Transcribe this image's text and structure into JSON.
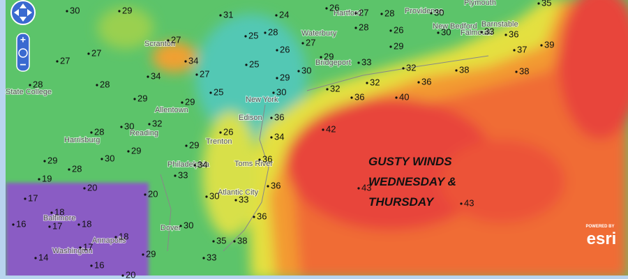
{
  "annotation": {
    "lines": [
      "GUSTY WINDS",
      "WEDNESDAY &",
      "THURSDAY"
    ]
  },
  "stations": [
    30,
    29,
    31,
    24,
    26,
    27,
    28,
    30,
    35,
    27,
    25,
    28,
    26,
    27,
    28,
    26,
    30,
    33,
    36,
    37,
    39,
    27,
    27,
    28,
    34,
    34,
    27,
    25,
    29,
    30,
    29,
    33,
    29,
    32,
    38,
    38,
    32,
    32,
    36,
    36,
    40,
    28,
    29,
    29,
    25,
    30,
    36,
    26,
    42,
    34,
    28,
    30,
    32,
    29,
    30,
    29,
    29,
    28,
    36,
    34,
    33,
    36,
    43,
    43,
    20,
    19,
    20,
    17,
    18,
    30,
    33,
    18,
    17,
    16,
    36,
    30,
    18,
    17,
    35,
    38,
    14,
    16,
    29,
    33,
    20
  ],
  "cities": [
    "State College",
    "Scranton",
    "Allentown",
    "Reading",
    "Harrisburg",
    "Trenton",
    "Edison",
    "New York",
    "Toms River",
    "Philadelphia",
    "Atlantic City",
    "Baltimore",
    "Annapolis",
    "Washington",
    "Dover",
    "Bridgeport",
    "Waterbury",
    "Hartford",
    "Providence",
    "New Bedford",
    "Falmouth",
    "Barnstable",
    "Plymouth"
  ],
  "attribution": {
    "powered_by": "POWERED BY",
    "logo": "esri"
  }
}
